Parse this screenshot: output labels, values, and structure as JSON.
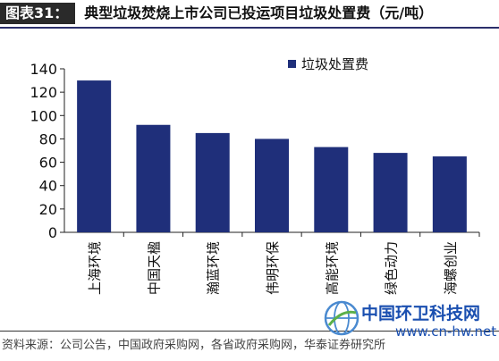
{
  "header": {
    "prefix": "图表31：",
    "title": "典型垃圾焚烧上市公司已投运项目垃圾处置费（元/吨）"
  },
  "chart_data": {
    "type": "bar",
    "categories": [
      "上海环境",
      "中国天楹",
      "瀚蓝环境",
      "伟明环保",
      "高能环境",
      "绿色动力",
      "海螺创业"
    ],
    "series": [
      {
        "name": "垃圾处置费",
        "values": [
          130,
          92,
          85,
          80,
          73,
          68,
          65
        ]
      }
    ],
    "ylim": [
      0,
      140
    ],
    "yticks": [
      0,
      20,
      40,
      60,
      80,
      100,
      120,
      140
    ],
    "legend": "top-right",
    "grid": false,
    "bar_color": "#1f2f7a"
  },
  "footer": {
    "source": "资料来源：公司公告，中国政府采购网，各省政府采购网，华泰证券研究所"
  },
  "watermark": {
    "name": "中国环卫科技网",
    "url": "www.cn-hw.net",
    "color": "#1a4fb0"
  }
}
